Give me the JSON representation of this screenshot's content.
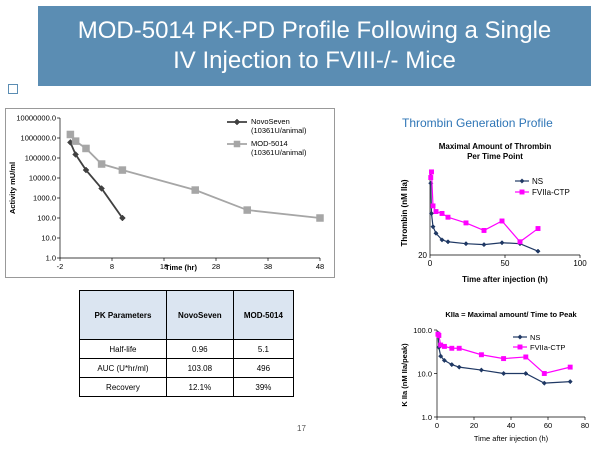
{
  "slide": {
    "title_line1": "MOD-5014 PK-PD Profile Following a Single",
    "title_line2": "IV Injection to FVIII-/- Mice",
    "thrombin_section_title": "Thrombin Generation Profile",
    "page_number": "17"
  },
  "colors": {
    "title_bg": "#5b8db3",
    "accent_blue": "#2e75b6",
    "novoseven": "#404040",
    "mod5014": "#a6a6a6",
    "ns": "#1f3864",
    "fviia_ctp": "#ff00ff"
  },
  "pk_table": {
    "headers": [
      "PK Parameters",
      "NovoSeven",
      "MOD-5014"
    ],
    "rows": [
      [
        "Half-life",
        "0.96",
        "5.1"
      ],
      [
        "AUC (U*hr/ml)",
        "103.08",
        "496"
      ],
      [
        "Recovery",
        "12.1%",
        "39%"
      ]
    ]
  },
  "chart_data": [
    {
      "type": "line",
      "title": "",
      "xlabel": "Time (hr)",
      "ylabel": "Activity mU/ml",
      "yscale": "log",
      "ylim": [
        1,
        10000000
      ],
      "xlim": [
        -2,
        48
      ],
      "x_ticks": [
        "-2",
        "8",
        "18",
        "28",
        "38",
        "48"
      ],
      "y_ticks": [
        "1.0",
        "10.0",
        "100.0",
        "1000.0",
        "10000.0",
        "100000.0",
        "1000000.0",
        "10000000.0"
      ],
      "legend_position": "top-right",
      "series": [
        {
          "name": "NovoSeven",
          "name_line2": "(10361U/animal)",
          "marker": "diamond",
          "x": [
            0,
            1,
            3,
            6,
            10
          ],
          "y": [
            600000,
            150000,
            25000,
            3000,
            100
          ]
        },
        {
          "name": "MOD-5014",
          "name_line2": "(10361U/animal)",
          "marker": "square",
          "x": [
            0,
            1,
            3,
            6,
            10,
            24,
            34,
            48
          ],
          "y": [
            1500000,
            700000,
            300000,
            50000,
            25000,
            2500,
            250,
            100
          ]
        }
      ]
    },
    {
      "type": "line",
      "title": "Maximal Amount of Thrombin",
      "title_line2": "Per Time Point",
      "xlabel": "Time after injection (h)",
      "ylabel": "Thrombin (nM IIa)",
      "ylim": [
        20,
        60
      ],
      "xlim": [
        0,
        100
      ],
      "x_ticks": [
        "0",
        "50",
        "100"
      ],
      "y_ticks": [
        "20"
      ],
      "legend_position": "top-right",
      "series": [
        {
          "name": "NS",
          "marker": "diamond",
          "x": [
            0.5,
            1,
            2,
            4,
            8,
            12,
            24,
            36,
            48,
            60,
            72
          ],
          "y": [
            58,
            42,
            35,
            31.5,
            28,
            27,
            26,
            25.5,
            26.5,
            26,
            22
          ]
        },
        {
          "name": "FVIIa-CTP",
          "marker": "square",
          "x": [
            0.5,
            1,
            2,
            4,
            8,
            12,
            24,
            36,
            48,
            60,
            72
          ],
          "y": [
            61,
            64,
            46,
            43,
            42,
            40,
            37,
            33,
            38,
            27,
            34
          ]
        }
      ]
    },
    {
      "type": "line",
      "title": "KIIa = Maximal amount/ Time to Peak",
      "xlabel": "Time after injection (h)",
      "ylabel": "K IIa (nM IIa/peak)",
      "yscale": "log",
      "ylim": [
        1,
        100
      ],
      "xlim": [
        0,
        80
      ],
      "x_ticks": [
        "0",
        "20",
        "40",
        "60",
        "80"
      ],
      "y_ticks": [
        "1.0",
        "10.0",
        "100.0"
      ],
      "legend_position": "top-right",
      "series": [
        {
          "name": "NS",
          "marker": "diamond",
          "x": [
            0.5,
            1,
            2,
            4,
            8,
            12,
            24,
            36,
            48,
            58,
            72
          ],
          "y": [
            85,
            40,
            25,
            20,
            16,
            14,
            12,
            10,
            10,
            6,
            6.5
          ]
        },
        {
          "name": "FVIIa-CTP",
          "marker": "square",
          "x": [
            0.5,
            1,
            2,
            4,
            8,
            12,
            24,
            36,
            48,
            58,
            72
          ],
          "y": [
            80,
            75,
            45,
            42,
            38,
            38,
            27,
            22,
            24,
            10,
            14
          ]
        }
      ]
    }
  ]
}
